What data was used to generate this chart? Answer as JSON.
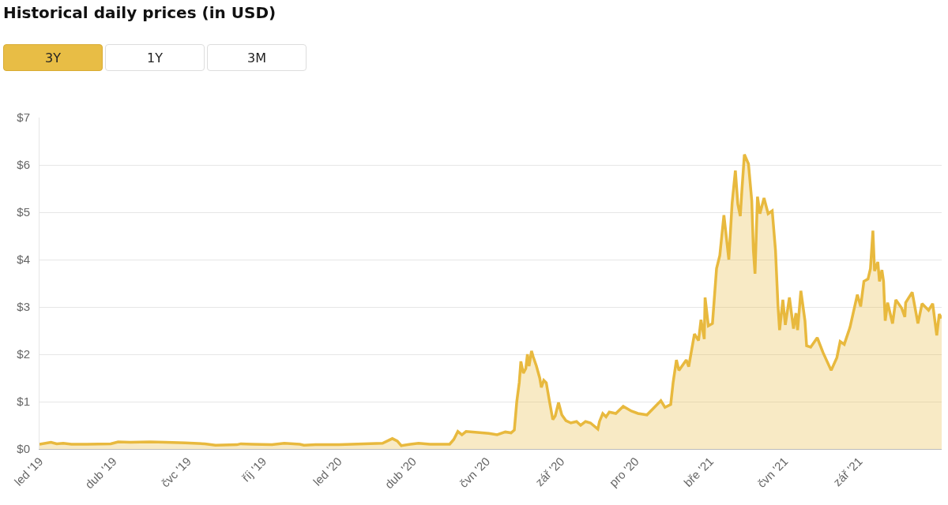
{
  "chart_data": {
    "type": "area",
    "title": "Historical daily prices (in USD)",
    "annotations": [
      "3Y",
      "1Y",
      "3M"
    ],
    "x": [
      "2019-01-01",
      "2019-01-15",
      "2019-01-22",
      "2019-01-30",
      "2019-02-09",
      "2019-02-28",
      "2019-03-29",
      "2019-04-07",
      "2019-04-22",
      "2019-05-16",
      "2019-06-04",
      "2019-06-28",
      "2019-07-22",
      "2019-08-04",
      "2019-08-30",
      "2019-09-04",
      "2019-09-18",
      "2019-10-12",
      "2019-10-27",
      "2019-11-15",
      "2019-11-20",
      "2019-12-04",
      "2020-01-02",
      "2020-02-24",
      "2020-03-07",
      "2020-03-13",
      "2020-03-18",
      "2020-03-29",
      "2020-04-08",
      "2020-04-22",
      "2020-05-16",
      "2020-05-21",
      "2020-05-26",
      "2020-05-31",
      "2020-06-05",
      "2020-06-19",
      "2020-07-03",
      "2020-07-13",
      "2020-07-23",
      "2020-07-30",
      "2020-08-03",
      "2020-08-06",
      "2020-08-09",
      "2020-08-11",
      "2020-08-14",
      "2020-08-17",
      "2020-08-19",
      "2020-08-21",
      "2020-08-24",
      "2020-08-26",
      "2020-08-30",
      "2020-09-03",
      "2020-09-05",
      "2020-09-08",
      "2020-09-11",
      "2020-09-15",
      "2020-09-19",
      "2020-09-22",
      "2020-09-26",
      "2020-09-30",
      "2020-10-05",
      "2020-10-11",
      "2020-10-18",
      "2020-10-23",
      "2020-10-29",
      "2020-11-04",
      "2020-11-13",
      "2020-11-15",
      "2020-11-19",
      "2020-11-23",
      "2020-11-27",
      "2020-12-05",
      "2020-12-14",
      "2020-12-24",
      "2021-01-01",
      "2021-01-12",
      "2021-01-29",
      "2021-02-03",
      "2021-02-10",
      "2021-02-13",
      "2021-02-17",
      "2021-02-20",
      "2021-03-01",
      "2021-03-04",
      "2021-03-11",
      "2021-03-16",
      "2021-03-19",
      "2021-03-23",
      "2021-03-24",
      "2021-03-28",
      "2021-04-02",
      "2021-04-07",
      "2021-04-11",
      "2021-04-16",
      "2021-04-22",
      "2021-04-26",
      "2021-04-30",
      "2021-05-03",
      "2021-05-06",
      "2021-05-08",
      "2021-05-11",
      "2021-05-16",
      "2021-05-20",
      "2021-05-22",
      "2021-05-24",
      "2021-05-27",
      "2021-05-30",
      "2021-06-04",
      "2021-06-09",
      "2021-06-14",
      "2021-06-18",
      "2021-06-21",
      "2021-06-23",
      "2021-06-27",
      "2021-06-30",
      "2021-07-05",
      "2021-07-10",
      "2021-07-13",
      "2021-07-15",
      "2021-07-19",
      "2021-07-24",
      "2021-07-26",
      "2021-07-31",
      "2021-08-08",
      "2021-08-15",
      "2021-08-25",
      "2021-09-01",
      "2021-09-05",
      "2021-09-10",
      "2021-09-17",
      "2021-09-26",
      "2021-09-30",
      "2021-10-04",
      "2021-10-09",
      "2021-10-12",
      "2021-10-15",
      "2021-10-17",
      "2021-10-21",
      "2021-10-23",
      "2021-10-26",
      "2021-10-28",
      "2021-10-30",
      "2021-11-02",
      "2021-11-08",
      "2021-11-12",
      "2021-11-19",
      "2021-11-23",
      "2021-11-24",
      "2021-12-02",
      "2021-12-09",
      "2021-12-14",
      "2021-12-22",
      "2021-12-27",
      "2022-01-01",
      "2022-01-04",
      "2022-01-07"
    ],
    "series": [
      {
        "color": "#e8b93e",
        "values": [
          0.1,
          0.14,
          0.11,
          0.12,
          0.1,
          0.1,
          0.11,
          0.15,
          0.14,
          0.15,
          0.14,
          0.13,
          0.11,
          0.08,
          0.09,
          0.11,
          0.1,
          0.09,
          0.12,
          0.1,
          0.08,
          0.09,
          0.09,
          0.12,
          0.22,
          0.17,
          0.07,
          0.1,
          0.12,
          0.1,
          0.1,
          0.2,
          0.37,
          0.3,
          0.37,
          0.35,
          0.33,
          0.3,
          0.36,
          0.34,
          0.4,
          1.0,
          1.4,
          1.85,
          1.6,
          1.7,
          2.0,
          1.75,
          2.07,
          1.95,
          1.75,
          1.5,
          1.3,
          1.45,
          1.4,
          1.0,
          0.62,
          0.7,
          0.98,
          0.72,
          0.6,
          0.55,
          0.58,
          0.5,
          0.58,
          0.55,
          0.42,
          0.58,
          0.75,
          0.68,
          0.78,
          0.75,
          0.9,
          0.8,
          0.75,
          0.72,
          1.02,
          0.88,
          0.94,
          1.41,
          1.88,
          1.66,
          1.88,
          1.74,
          2.43,
          2.29,
          2.73,
          2.32,
          3.2,
          2.6,
          2.65,
          3.81,
          4.09,
          4.94,
          4.0,
          5.19,
          5.88,
          5.17,
          4.92,
          5.47,
          6.22,
          6.02,
          5.25,
          4.2,
          3.7,
          5.33,
          4.97,
          5.3,
          4.97,
          5.03,
          4.2,
          3.04,
          2.51,
          3.15,
          2.62,
          3.2,
          2.54,
          2.87,
          2.51,
          3.34,
          2.71,
          2.18,
          2.15,
          2.35,
          2.04,
          1.66,
          1.93,
          2.27,
          2.21,
          2.57,
          3.26,
          3.01,
          3.54,
          3.59,
          3.81,
          4.61,
          3.76,
          3.95,
          3.54,
          3.78,
          3.54,
          2.71,
          3.09,
          2.65,
          3.15,
          2.98,
          2.79,
          3.09,
          3.31,
          2.65,
          3.07,
          2.93,
          3.07,
          2.4,
          2.85,
          2.76
        ]
      }
    ],
    "xlim": [
      "2019-01-01",
      "2022-01-07"
    ],
    "xticks": [
      {
        "value": "2019-01-01",
        "label": "led '19"
      },
      {
        "value": "2019-04-01",
        "label": "dub '19"
      },
      {
        "value": "2019-07-01",
        "label": "čvc '19"
      },
      {
        "value": "2019-10-01",
        "label": "říj '19"
      },
      {
        "value": "2020-01-01",
        "label": "led '20"
      },
      {
        "value": "2020-04-01",
        "label": "dub '20"
      },
      {
        "value": "2020-06-30",
        "label": "čvn '20"
      },
      {
        "value": "2020-09-29",
        "label": "zář '20"
      },
      {
        "value": "2020-12-29",
        "label": "pro '20"
      },
      {
        "value": "2021-03-30",
        "label": "bře '21"
      },
      {
        "value": "2021-06-29",
        "label": "čvn '21"
      },
      {
        "value": "2021-09-28",
        "label": "zář '21"
      }
    ],
    "ylim": [
      0,
      7
    ],
    "yticks": [
      {
        "value": 0,
        "label": "$0"
      },
      {
        "value": 1,
        "label": "$1"
      },
      {
        "value": 2,
        "label": "$2"
      },
      {
        "value": 3,
        "label": "$3"
      },
      {
        "value": 4,
        "label": "$4"
      },
      {
        "value": 5,
        "label": "$5"
      },
      {
        "value": 6,
        "label": "$6"
      },
      {
        "value": 7,
        "label": "$7"
      }
    ],
    "grid": "y",
    "legend": false,
    "marker": "none",
    "line_style": "solid"
  }
}
